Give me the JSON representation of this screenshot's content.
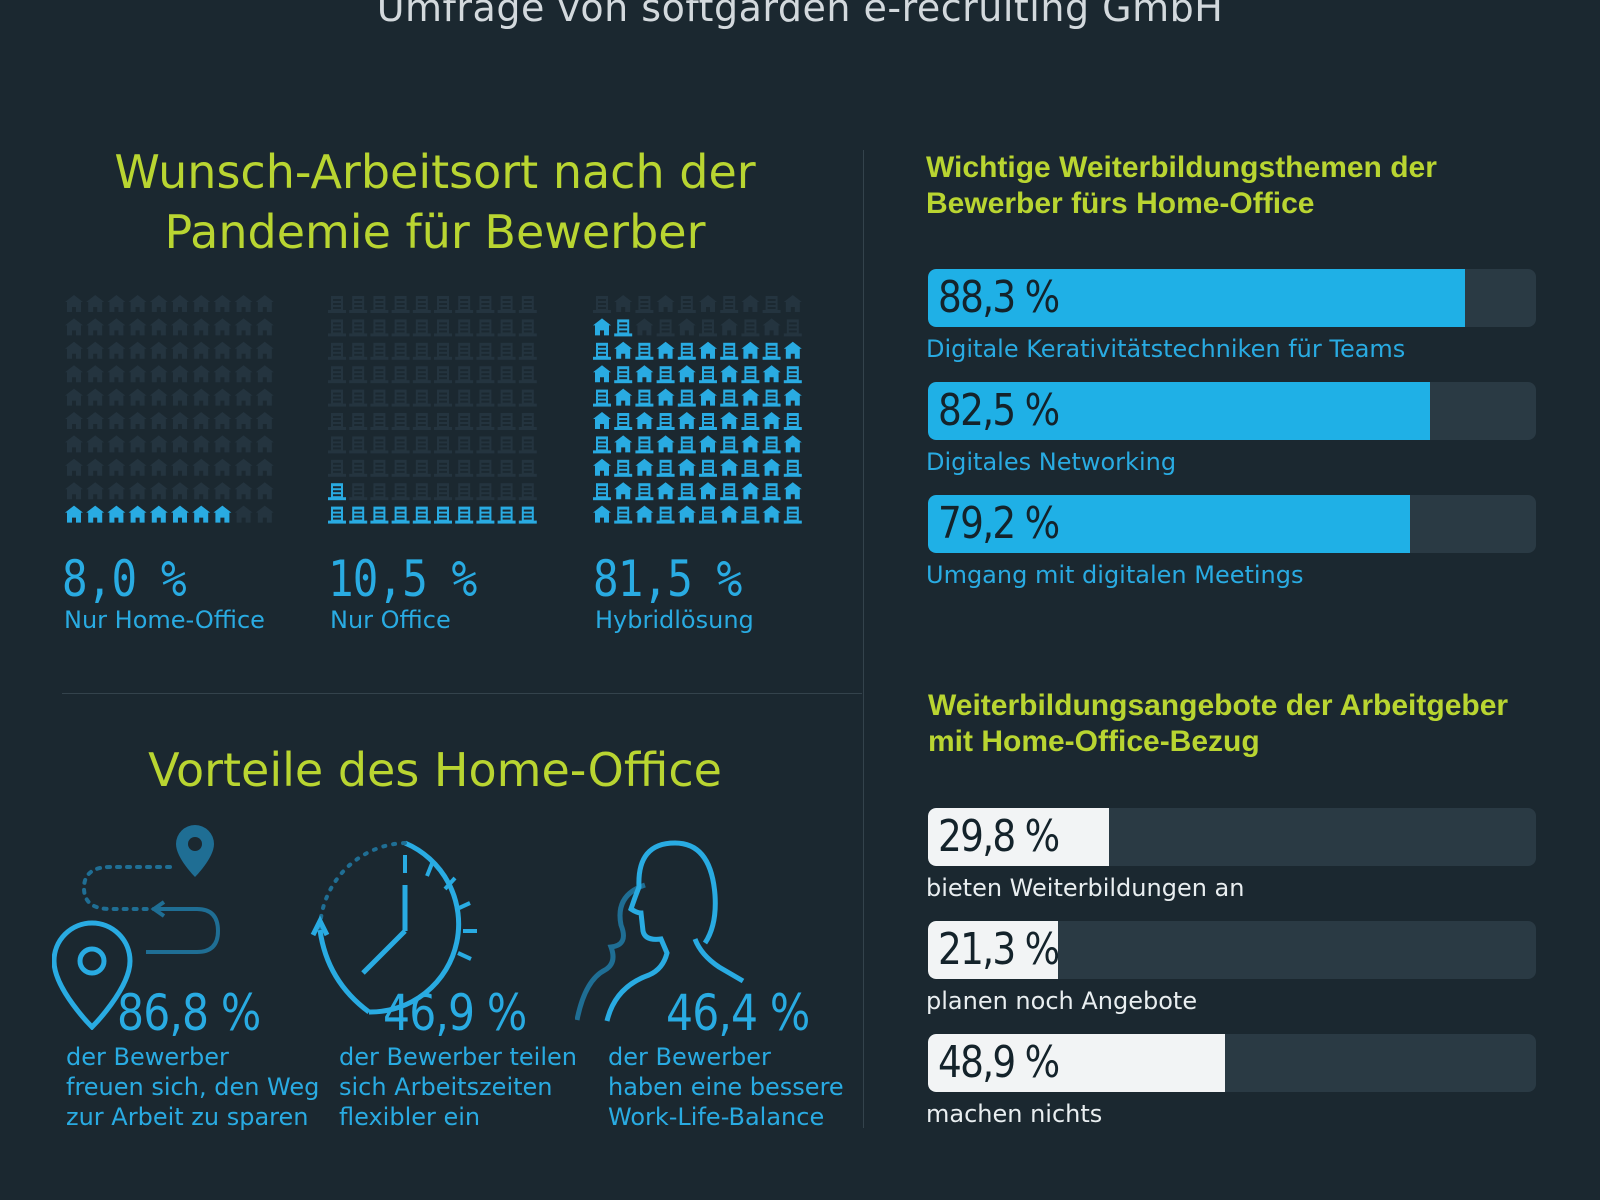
{
  "subtitle": "Umfrage von softgarden e-recruiting GmbH",
  "colors": {
    "background": "#1b2830",
    "green": "#b9d531",
    "blue": "#29abe2",
    "bar_blue": "#1fb0e6",
    "bar_white": "#f2f4f5",
    "track": "#2a3a44",
    "icon_dim": "#24343f"
  },
  "wish": {
    "title_line1": "Wunsch-Arbeitsort nach der",
    "title_line2": "Pandemie für Bewerber",
    "items": [
      {
        "pct": "8,0 %",
        "label": "Nur Home-Office",
        "icon": "house-icon"
      },
      {
        "pct": "10,5 %",
        "label": "Nur Office",
        "icon": "office-building-icon"
      },
      {
        "pct": "81,5 %",
        "label": "Hybridlösung",
        "icon": "house-and-building-icon"
      }
    ]
  },
  "advantages": {
    "title": "Vorteile des Home-Office",
    "items": [
      {
        "pct": "86,8 %",
        "line1": "der Bewerber",
        "line2": "freuen sich, den Weg",
        "line3": "zur Arbeit zu sparen",
        "icon": "route-pin-icon"
      },
      {
        "pct": "46,9 %",
        "line1": "der Bewerber teilen",
        "line2": "sich Arbeitszeiten",
        "line3": "flexibler ein",
        "icon": "clock-icon"
      },
      {
        "pct": "46,4 %",
        "line1": "der Bewerber",
        "line2": "haben eine bessere",
        "line3": "Work-Life-Balance",
        "icon": "person-silhouette-icon"
      }
    ]
  },
  "topics": {
    "title_line1": "Wichtige Weiterbildungsthemen der",
    "title_line2": "Bewerber fürs Home-Office",
    "bars": [
      {
        "value": 88.3,
        "text": "88,3 %",
        "label": "Digitale Kerativitätstechniken für Teams"
      },
      {
        "value": 82.5,
        "text": "82,5 %",
        "label": "Digitales Networking"
      },
      {
        "value": 79.2,
        "text": "79,2 %",
        "label": "Umgang mit digitalen Meetings"
      }
    ]
  },
  "offers": {
    "title_line1": "Weiterbildungsangebote der Arbeitgeber",
    "title_line2": "mit Home-Office-Bezug",
    "bars": [
      {
        "value": 29.8,
        "text": "29,8 %",
        "label": "bieten Weiterbildungen an"
      },
      {
        "value": 21.3,
        "text": "21,3 %",
        "label": "planen noch Angebote"
      },
      {
        "value": 48.9,
        "text": "48,9 %",
        "label": "machen nichts"
      }
    ]
  },
  "chart_data": [
    {
      "type": "pictogram",
      "title": "Wunsch-Arbeitsort nach der Pandemie für Bewerber",
      "categories": [
        "Nur Home-Office",
        "Nur Office",
        "Hybridlösung"
      ],
      "values": [
        8.0,
        10.5,
        81.5
      ],
      "unit": "%",
      "icons_per_grid": 100
    },
    {
      "type": "bar",
      "orientation": "horizontal",
      "title": "Wichtige Weiterbildungsthemen der Bewerber fürs Home-Office",
      "categories": [
        "Digitale Kerativitätstechniken für Teams",
        "Digitales Networking",
        "Umgang mit digitalen Meetings"
      ],
      "values": [
        88.3,
        82.5,
        79.2
      ],
      "xlim": [
        0,
        100
      ],
      "unit": "%"
    },
    {
      "type": "bar",
      "orientation": "horizontal",
      "title": "Weiterbildungsangebote der Arbeitgeber mit Home-Office-Bezug",
      "categories": [
        "bieten Weiterbildungen an",
        "planen noch Angebote",
        "machen nichts"
      ],
      "values": [
        29.8,
        21.3,
        48.9
      ],
      "xlim": [
        0,
        100
      ],
      "unit": "%"
    },
    {
      "type": "table",
      "title": "Vorteile des Home-Office",
      "categories": [
        "den Weg zur Arbeit sparen",
        "Arbeitszeiten flexibler einteilen",
        "bessere Work-Life-Balance"
      ],
      "values": [
        86.8,
        46.9,
        46.4
      ],
      "unit": "%"
    }
  ]
}
